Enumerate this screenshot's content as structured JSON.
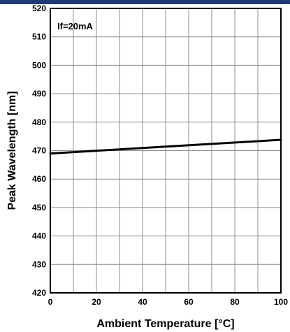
{
  "chart_data": {
    "type": "line",
    "title": "",
    "xlabel": "Ambient Temperature [°C]",
    "ylabel": "Peak Wavelength [nm]",
    "xlim": [
      0,
      100
    ],
    "ylim": [
      420,
      520
    ],
    "xticks": [
      0,
      20,
      40,
      60,
      80,
      100
    ],
    "yticks": [
      420,
      430,
      440,
      450,
      460,
      470,
      480,
      490,
      500,
      510,
      520
    ],
    "grid": true,
    "annotation": "If=20mA",
    "series": [
      {
        "x": [
          0,
          25,
          50,
          75,
          100
        ],
        "y": [
          469,
          470.2,
          471.4,
          472.6,
          473.8
        ]
      }
    ],
    "colors": {
      "line": "#000000",
      "grid": "#8c8c8c",
      "frame": "#000000",
      "topbar": "#1f3b73"
    }
  }
}
